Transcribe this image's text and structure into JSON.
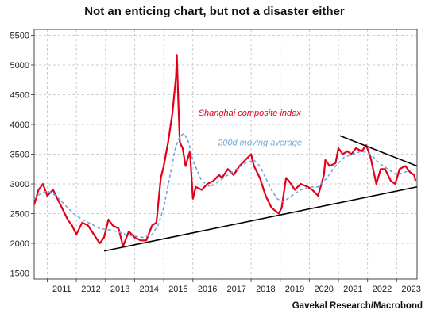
{
  "title": "Not an enticing chart, but not a disaster either",
  "source": "Gavekal Research/Macrobond",
  "chart_data": {
    "type": "line",
    "title": "Not an enticing chart, but not a disaster either",
    "ylim": [
      1400,
      5600
    ],
    "xlim": [
      2010.55,
      2023.7
    ],
    "y_ticks": [
      1500,
      2000,
      2500,
      3000,
      3500,
      4000,
      4500,
      5000,
      5500
    ],
    "x_ticks": [
      "2011",
      "2012",
      "2013",
      "2014",
      "2015",
      "2016",
      "2017",
      "2018",
      "2019",
      "2020",
      "2021",
      "2022",
      "2023"
    ],
    "grid": true,
    "series": [
      {
        "name": "Shanghai composite index",
        "color": "#e2001a",
        "style": "solid",
        "x": [
          2010.55,
          2010.7,
          2010.85,
          2011.0,
          2011.2,
          2011.4,
          2011.55,
          2011.7,
          2011.85,
          2012.0,
          2012.2,
          2012.4,
          2012.6,
          2012.8,
          2012.95,
          2013.1,
          2013.25,
          2013.45,
          2013.6,
          2013.8,
          2014.0,
          2014.2,
          2014.4,
          2014.6,
          2014.75,
          2014.9,
          2015.0,
          2015.15,
          2015.3,
          2015.42,
          2015.45,
          2015.5,
          2015.55,
          2015.65,
          2015.75,
          2015.9,
          2016.0,
          2016.1,
          2016.3,
          2016.5,
          2016.7,
          2016.9,
          2017.0,
          2017.2,
          2017.4,
          2017.6,
          2017.8,
          2018.0,
          2018.1,
          2018.3,
          2018.5,
          2018.7,
          2018.95,
          2019.05,
          2019.2,
          2019.3,
          2019.5,
          2019.7,
          2019.95,
          2020.1,
          2020.3,
          2020.5,
          2020.55,
          2020.7,
          2020.9,
          2021.0,
          2021.15,
          2021.3,
          2021.45,
          2021.6,
          2021.8,
          2021.95,
          2022.1,
          2022.3,
          2022.45,
          2022.6,
          2022.8,
          2022.95,
          2023.1,
          2023.3,
          2023.45,
          2023.6,
          2023.65
        ],
        "y": [
          2650,
          2900,
          3000,
          2800,
          2900,
          2700,
          2550,
          2400,
          2300,
          2150,
          2350,
          2300,
          2150,
          2000,
          2100,
          2400,
          2300,
          2250,
          1950,
          2200,
          2100,
          2050,
          2050,
          2300,
          2350,
          3100,
          3300,
          3700,
          4200,
          4800,
          5170,
          4400,
          3700,
          3600,
          3300,
          3550,
          2750,
          2950,
          2900,
          3000,
          3050,
          3150,
          3100,
          3250,
          3150,
          3300,
          3400,
          3500,
          3300,
          3100,
          2800,
          2600,
          2500,
          2600,
          3100,
          3050,
          2900,
          3000,
          2950,
          2900,
          2800,
          3150,
          3400,
          3300,
          3350,
          3600,
          3500,
          3550,
          3500,
          3600,
          3550,
          3650,
          3450,
          3000,
          3250,
          3250,
          3050,
          3000,
          3250,
          3300,
          3200,
          3150,
          3050
        ]
      },
      {
        "name": "200d moving average",
        "color": "#6fa8dc",
        "style": "dashed",
        "x": [
          2010.55,
          2010.8,
          2011.0,
          2011.3,
          2011.6,
          2011.9,
          2012.2,
          2012.5,
          2012.8,
          2013.1,
          2013.4,
          2013.7,
          2014.0,
          2014.3,
          2014.6,
          2014.8,
          2015.0,
          2015.2,
          2015.4,
          2015.55,
          2015.7,
          2015.85,
          2016.0,
          2016.3,
          2016.6,
          2016.9,
          2017.2,
          2017.5,
          2017.8,
          2018.1,
          2018.3,
          2018.5,
          2018.7,
          2018.9,
          2019.1,
          2019.4,
          2019.7,
          2020.0,
          2020.3,
          2020.6,
          2020.9,
          2021.2,
          2021.5,
          2021.8,
          2022.1,
          2022.4,
          2022.7,
          2023.0,
          2023.3,
          2023.6
        ],
        "y": [
          2750,
          2850,
          2880,
          2800,
          2650,
          2500,
          2400,
          2330,
          2250,
          2230,
          2200,
          2150,
          2120,
          2100,
          2150,
          2300,
          2600,
          3100,
          3600,
          3800,
          3850,
          3700,
          3400,
          3050,
          2950,
          3050,
          3150,
          3250,
          3350,
          3400,
          3300,
          3100,
          2900,
          2750,
          2700,
          2800,
          2900,
          2950,
          2950,
          3100,
          3300,
          3450,
          3500,
          3550,
          3500,
          3350,
          3250,
          3150,
          3200,
          3250
        ]
      }
    ],
    "annotations": [
      {
        "text": "Shanghai composite index",
        "color": "#e2001a"
      },
      {
        "text": "200d moving average",
        "color": "#6fa8dc"
      }
    ],
    "trendlines": [
      {
        "from": [
          2012.95,
          1870
        ],
        "to": [
          2023.7,
          2950
        ],
        "color": "#000000"
      },
      {
        "from": [
          2021.05,
          3810
        ],
        "to": [
          2023.7,
          3300
        ],
        "color": "#000000"
      }
    ]
  }
}
